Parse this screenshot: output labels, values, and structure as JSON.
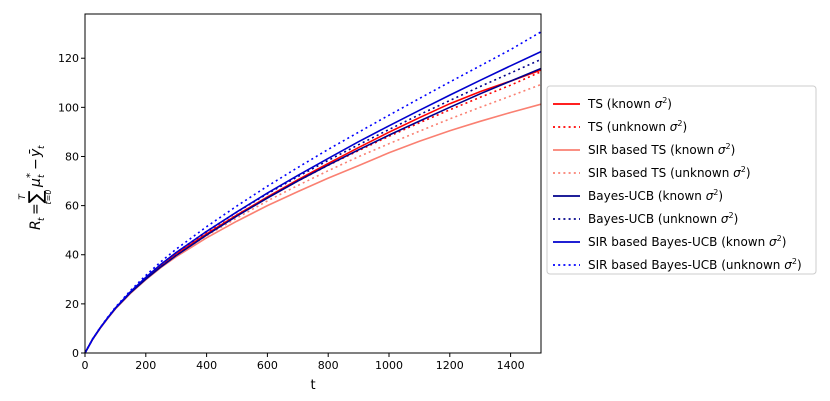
{
  "chart_data": {
    "type": "line",
    "title": "",
    "xlabel": "t",
    "ylabel": {
      "base": "R",
      "base_sub": "t",
      "eq": "=",
      "sum_symbol": "∑",
      "sum_upper": "T",
      "sum_lower": "t=0",
      "mu": "μ",
      "mu_sub": "t",
      "mu_sup": "*",
      "minus": "−",
      "y": "ȳ",
      "y_sub": "t"
    },
    "xlim": [
      0,
      1500
    ],
    "ylim": [
      0,
      138
    ],
    "xticks": [
      0,
      200,
      400,
      600,
      800,
      1000,
      1200,
      1400
    ],
    "yticks": [
      0,
      20,
      40,
      60,
      80,
      100,
      120
    ],
    "grid": false,
    "legend_position": "right",
    "x": [
      0,
      25,
      50,
      75,
      100,
      150,
      200,
      250,
      300,
      400,
      500,
      600,
      700,
      800,
      900,
      1000,
      1100,
      1200,
      1300,
      1400,
      1500
    ],
    "series": [
      {
        "name_main": "TS (known ",
        "name_sym": "σ",
        "name_sup": "2",
        "name_tail": ")",
        "color": "#ff0000",
        "dash": "solid",
        "values": [
          0,
          5.6,
          10.2,
          14.3,
          18.2,
          24.8,
          30.4,
          35.6,
          40.2,
          48.5,
          56.2,
          63.5,
          70.5,
          77.2,
          83.6,
          89.9,
          95.8,
          101.5,
          106.4,
          110.7,
          115.2
        ]
      },
      {
        "name_main": "TS (unknown ",
        "name_sym": "σ",
        "name_sup": "2",
        "name_tail": ")",
        "color": "#ff0000",
        "dash": "dotted",
        "values": [
          0,
          5.6,
          10.2,
          14.3,
          18.3,
          25.0,
          30.7,
          35.9,
          40.6,
          48.8,
          56.3,
          63.3,
          70.0,
          76.4,
          82.4,
          88.2,
          93.7,
          99.0,
          104.1,
          109.0,
          114.5
        ]
      },
      {
        "name_main": "SIR based TS (known ",
        "name_sym": "σ",
        "name_sup": "2",
        "name_tail": ")",
        "color": "#fa8072",
        "dash": "solid",
        "values": [
          0,
          5.5,
          10.0,
          14.1,
          17.9,
          24.3,
          29.8,
          34.8,
          39.2,
          46.9,
          53.7,
          60.0,
          65.7,
          71.2,
          76.3,
          81.5,
          86.2,
          90.5,
          94.3,
          97.9,
          101.3
        ]
      },
      {
        "name_main": "SIR based TS (unknown ",
        "name_sym": "σ",
        "name_sup": "2",
        "name_tail": ")",
        "color": "#fa8072",
        "dash": "dotted",
        "values": [
          0,
          5.5,
          10.1,
          14.2,
          18.1,
          24.6,
          30.1,
          35.2,
          39.8,
          47.8,
          55.0,
          61.9,
          68.2,
          74.2,
          79.9,
          85.2,
          90.3,
          95.3,
          100.0,
          104.6,
          109.3
        ]
      },
      {
        "name_main": "Bayes-UCB (known ",
        "name_sym": "σ",
        "name_sup": "2",
        "name_tail": ")",
        "color": "#00008b",
        "dash": "solid",
        "values": [
          0,
          5.6,
          10.2,
          14.3,
          18.1,
          24.6,
          30.1,
          35.1,
          39.7,
          48.0,
          55.8,
          63.1,
          70.0,
          76.5,
          82.7,
          88.7,
          94.4,
          100.0,
          105.5,
          110.7,
          115.8
        ]
      },
      {
        "name_main": "Bayes-UCB (unknown ",
        "name_sym": "σ",
        "name_sup": "2",
        "name_tail": ")",
        "color": "#00008b",
        "dash": "dotted",
        "values": [
          0,
          5.6,
          10.2,
          14.4,
          18.3,
          25.0,
          30.8,
          36.1,
          40.9,
          49.5,
          57.4,
          64.8,
          71.8,
          78.4,
          84.8,
          91.0,
          97.0,
          102.8,
          108.5,
          114.0,
          119.5
        ]
      },
      {
        "name_main": "SIR based Bayes-UCB (known ",
        "name_sym": "σ",
        "name_sup": "2",
        "name_tail": ")",
        "color": "#0000cd",
        "dash": "solid",
        "values": [
          0,
          5.6,
          10.2,
          14.4,
          18.3,
          25.0,
          30.8,
          36.1,
          40.9,
          49.5,
          57.5,
          65.1,
          72.3,
          79.2,
          86.0,
          92.5,
          98.8,
          105.0,
          111.0,
          116.9,
          122.7
        ]
      },
      {
        "name_main": "SIR based Bayes-UCB (unknown ",
        "name_sym": "σ",
        "name_sup": "2",
        "name_tail": ")",
        "color": "#0000ff",
        "dash": "dotted",
        "values": [
          0,
          5.7,
          10.4,
          14.6,
          18.6,
          25.5,
          31.6,
          37.2,
          42.3,
          51.4,
          59.9,
          67.9,
          75.5,
          82.9,
          89.9,
          96.8,
          103.6,
          110.3,
          116.9,
          123.5,
          130.7
        ]
      }
    ]
  }
}
